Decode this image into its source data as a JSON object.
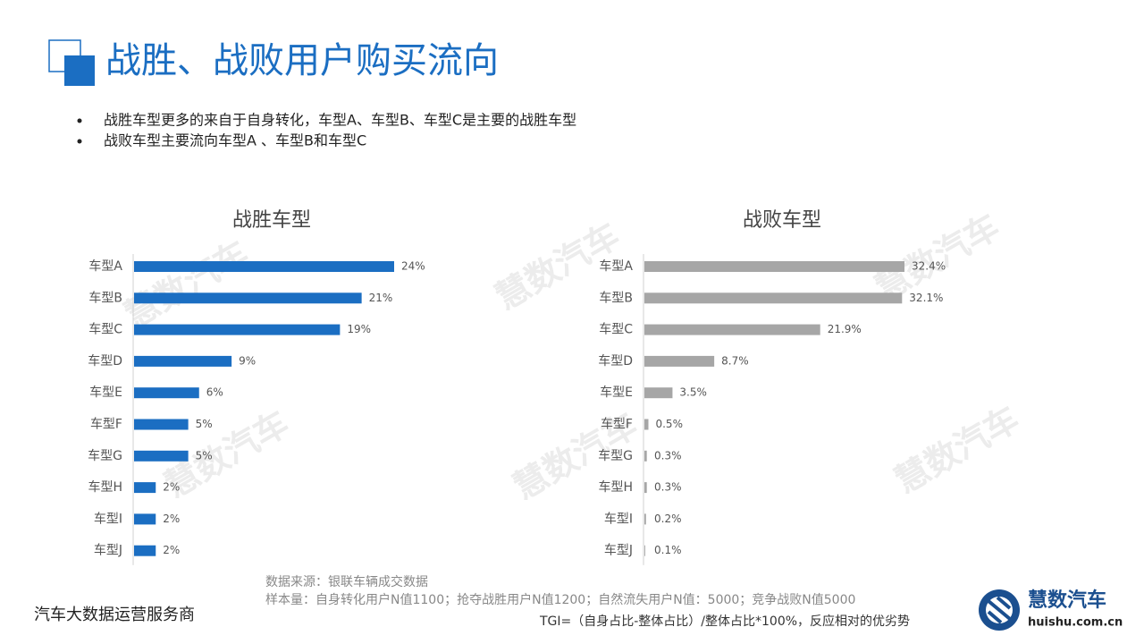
{
  "header": {
    "title": "战胜、战败用户购买流向"
  },
  "bullets": [
    "战胜车型更多的来自于自身转化，车型A、车型B、车型C是主要的战胜车型",
    "战败车型主要流向车型A 、车型B和车型C"
  ],
  "watermark": "慧数汽车",
  "chart_data": [
    {
      "type": "bar",
      "orientation": "horizontal",
      "title": "战胜车型",
      "color": "#1b6ec2",
      "categories": [
        "车型A",
        "车型B",
        "车型C",
        "车型D",
        "车型E",
        "车型F",
        "车型G",
        "车型H",
        "车型I",
        "车型J"
      ],
      "values": [
        24,
        21,
        19,
        9,
        6,
        5,
        5,
        2,
        2,
        2
      ],
      "value_labels": [
        "24%",
        "21%",
        "19%",
        "9%",
        "6%",
        "5%",
        "5%",
        "2%",
        "2%",
        "2%"
      ]
    },
    {
      "type": "bar",
      "orientation": "horizontal",
      "title": "战败车型",
      "color": "#a6a6a6",
      "categories": [
        "车型A",
        "车型B",
        "车型C",
        "车型D",
        "车型E",
        "车型F",
        "车型G",
        "车型H",
        "车型I",
        "车型J"
      ],
      "values": [
        32.4,
        32.1,
        21.9,
        8.7,
        3.5,
        0.5,
        0.3,
        0.3,
        0.2,
        0.1
      ],
      "value_labels": [
        "32.4%",
        "32.1%",
        "21.9%",
        "8.7%",
        "3.5%",
        "0.5%",
        "0.3%",
        "0.3%",
        "0.2%",
        "0.1%"
      ]
    }
  ],
  "footer": {
    "source": "数据来源：银联车辆成交数据",
    "sample": "样本量：自身转化用户N值1100；抢夺战胜用户N值1200；自然流失用户N值：5000；竞争战败N值5000",
    "tgi": "TGI=（自身占比-整体占比）/整体占比*100%，反应相对的优劣势",
    "company": "汽车大数据运营服务商"
  },
  "logo": {
    "name": "慧数汽车",
    "url": "huishu.com.cn"
  }
}
